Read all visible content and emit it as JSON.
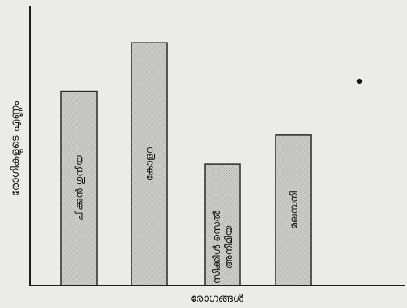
{
  "chart_data": {
    "type": "bar",
    "title": "",
    "xlabel": "രോഗങ്ങൾ",
    "ylabel": "രോഗികളുടെ എണ്ണം",
    "categories": [
      "ചിക്കുൻ ഗുനിയ",
      "കോളറ",
      "സിക്കിൾ സെൽ അനീമിയ",
      "മലമ്പനി"
    ],
    "category_lines": [
      [
        "ചിക്കുൻ ഗുനിയ"
      ],
      [
        "കോളറ"
      ],
      [
        "സിക്കിൾ സെൽ",
        "അനീമിയ"
      ],
      [
        "മലമ്പനി"
      ]
    ],
    "values": [
      80,
      100,
      50,
      62
    ],
    "ylim": [
      0,
      110
    ],
    "grid": false,
    "colors": {
      "bar_fill": "#cfcfcd",
      "bar_dot": "#8f8f8f",
      "bar_edge": "#2a2a2a",
      "axis": "#1d1d1d",
      "paper": "#ebebe9"
    }
  }
}
